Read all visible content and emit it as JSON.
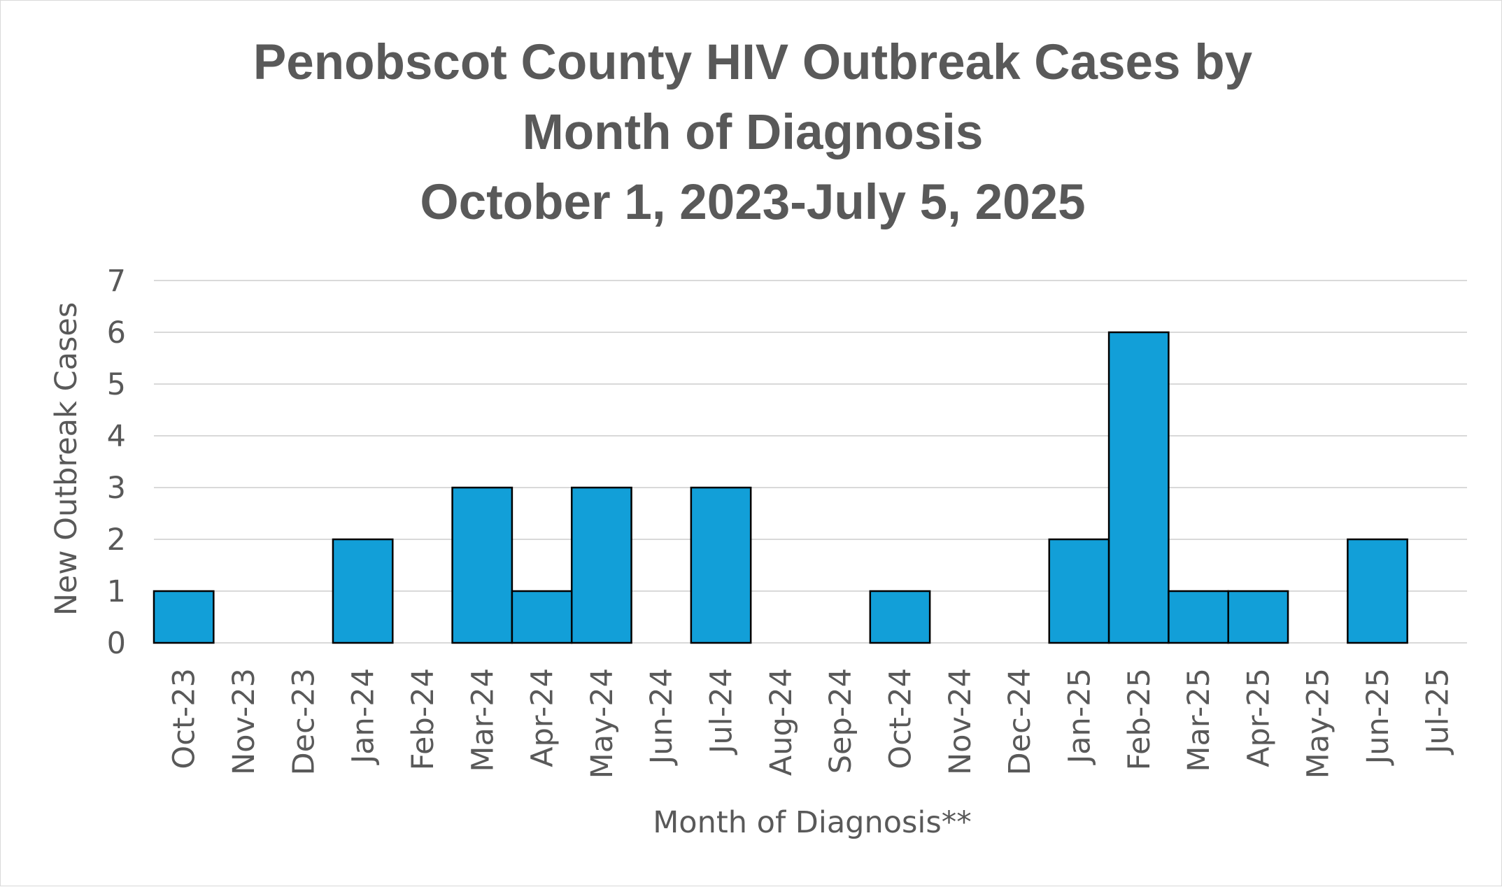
{
  "chart_data": {
    "type": "bar",
    "title_lines": [
      "Penobscot County HIV Outbreak Cases by",
      "Month of Diagnosis",
      "October 1, 2023-July 5, 2025"
    ],
    "xlabel": "Month of Diagnosis**",
    "ylabel": "New Outbreak Cases",
    "categories": [
      "Oct-23",
      "Nov-23",
      "Dec-23",
      "Jan-24",
      "Feb-24",
      "Mar-24",
      "Apr-24",
      "May-24",
      "Jun-24",
      "Jul-24",
      "Aug-24",
      "Sep-24",
      "Oct-24",
      "Nov-24",
      "Dec-24",
      "Jan-25",
      "Feb-25",
      "Mar-25",
      "Apr-25",
      "May-25",
      "Jun-25",
      "Jul-25"
    ],
    "values": [
      1,
      0,
      0,
      2,
      0,
      3,
      1,
      3,
      0,
      3,
      0,
      0,
      1,
      0,
      0,
      2,
      6,
      1,
      1,
      0,
      2,
      0
    ],
    "ylim": [
      0,
      7
    ],
    "yticks": [
      "0",
      "1",
      "2",
      "3",
      "4",
      "5",
      "6",
      "7"
    ],
    "grid": true,
    "legend": "none",
    "colors": {
      "bar": "#129fd8",
      "bar_outline": "#000000",
      "text": "#595959",
      "grid": "#d9d9d9"
    }
  }
}
